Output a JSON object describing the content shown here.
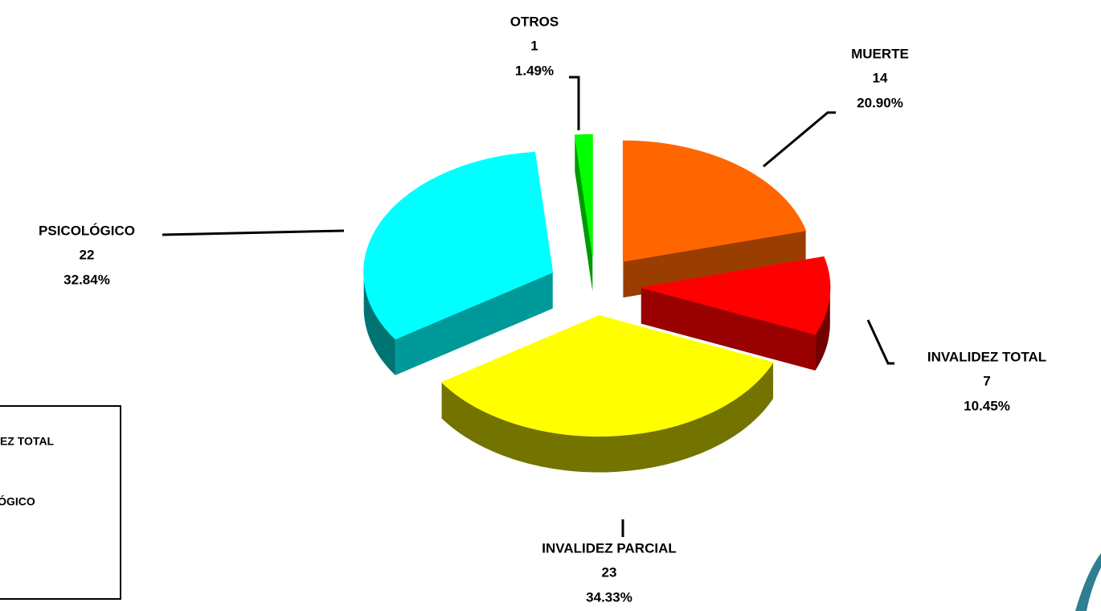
{
  "chart_data": {
    "type": "pie",
    "categories": [
      "MUERTE",
      "INVALIDEZ TOTAL",
      "INVALIDEZ PARCIAL",
      "PSICOLÓGICO",
      "OTROS"
    ],
    "values": [
      14,
      7,
      23,
      22,
      1
    ],
    "percentages": [
      {
        "value": 20.9,
        "label": "20.90%"
      },
      {
        "value": 10.45,
        "label": "10.45%"
      },
      {
        "value": 34.33,
        "label": "34.33%"
      },
      {
        "value": 32.84,
        "label": "32.84%"
      },
      {
        "value": 1.49,
        "label": "1.49%"
      }
    ],
    "colors": [
      "#ff6600",
      "#ff0000",
      "#ffff00",
      "#00ffff",
      "#00ff00"
    ],
    "legend": "bottom-left"
  }
}
